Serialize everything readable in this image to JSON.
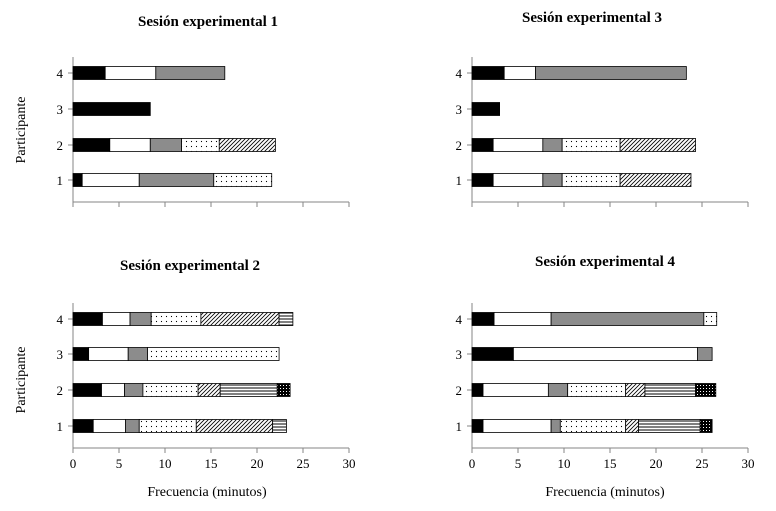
{
  "patterns": [
    "solid-black",
    "white",
    "gray",
    "dots",
    "diagonal-hatch",
    "horizontal-lines",
    "black-dots"
  ],
  "colors": {
    "black": "#000000",
    "gray": "#8c8c8c",
    "white": "#ffffff"
  },
  "chart_data": [
    {
      "type": "bar",
      "orientation": "horizontal-stacked",
      "title": "Sesión experimental 1",
      "ylabel": "Participante",
      "xlabel": "",
      "xlim": [
        0,
        30
      ],
      "x_ticks": [
        "0",
        "5",
        "10",
        "15",
        "20",
        "25",
        "30"
      ],
      "x_tick_labels_shown": false,
      "categories": [
        "1",
        "2",
        "3",
        "4"
      ],
      "bars": [
        {
          "participant": "1",
          "segments": [
            {
              "pattern": "solid-black",
              "value": 1.0
            },
            {
              "pattern": "white",
              "value": 6.2
            },
            {
              "pattern": "gray",
              "value": 8.1
            },
            {
              "pattern": "dots",
              "value": 6.3
            }
          ]
        },
        {
          "participant": "2",
          "segments": [
            {
              "pattern": "solid-black",
              "value": 4.0
            },
            {
              "pattern": "white",
              "value": 4.4
            },
            {
              "pattern": "gray",
              "value": 3.4
            },
            {
              "pattern": "dots",
              "value": 4.1
            },
            {
              "pattern": "diagonal-hatch",
              "value": 6.1
            }
          ]
        },
        {
          "participant": "3",
          "segments": [
            {
              "pattern": "solid-black",
              "value": 8.4
            }
          ]
        },
        {
          "participant": "4",
          "segments": [
            {
              "pattern": "solid-black",
              "value": 3.5
            },
            {
              "pattern": "white",
              "value": 5.5
            },
            {
              "pattern": "gray",
              "value": 7.5
            }
          ]
        }
      ]
    },
    {
      "type": "bar",
      "orientation": "horizontal-stacked",
      "title": "Sesión experimental 3",
      "ylabel": "",
      "xlabel": "",
      "xlim": [
        0,
        30
      ],
      "x_ticks": [
        "0",
        "5",
        "10",
        "15",
        "20",
        "25",
        "30"
      ],
      "x_tick_labels_shown": false,
      "categories": [
        "1",
        "2",
        "3",
        "4"
      ],
      "bars": [
        {
          "participant": "1",
          "segments": [
            {
              "pattern": "solid-black",
              "value": 2.3
            },
            {
              "pattern": "white",
              "value": 5.4
            },
            {
              "pattern": "gray",
              "value": 2.1
            },
            {
              "pattern": "dots",
              "value": 6.3
            },
            {
              "pattern": "diagonal-hatch",
              "value": 7.7
            }
          ]
        },
        {
          "participant": "2",
          "segments": [
            {
              "pattern": "solid-black",
              "value": 2.3
            },
            {
              "pattern": "white",
              "value": 5.4
            },
            {
              "pattern": "gray",
              "value": 2.1
            },
            {
              "pattern": "dots",
              "value": 6.3
            },
            {
              "pattern": "diagonal-hatch",
              "value": 8.2
            }
          ]
        },
        {
          "participant": "3",
          "segments": [
            {
              "pattern": "solid-black",
              "value": 3.0
            }
          ]
        },
        {
          "participant": "4",
          "segments": [
            {
              "pattern": "solid-black",
              "value": 3.5
            },
            {
              "pattern": "white",
              "value": 3.4
            },
            {
              "pattern": "gray",
              "value": 16.4
            }
          ]
        }
      ]
    },
    {
      "type": "bar",
      "orientation": "horizontal-stacked",
      "title": "Sesión experimental 2",
      "ylabel": "Participante",
      "xlabel": "Frecuencia (minutos)",
      "xlim": [
        0,
        30
      ],
      "x_ticks": [
        "0",
        "5",
        "10",
        "15",
        "20",
        "25",
        "30"
      ],
      "x_tick_labels_shown": true,
      "categories": [
        "1",
        "2",
        "3",
        "4"
      ],
      "bars": [
        {
          "participant": "1",
          "segments": [
            {
              "pattern": "solid-black",
              "value": 2.2
            },
            {
              "pattern": "white",
              "value": 3.5
            },
            {
              "pattern": "gray",
              "value": 1.5
            },
            {
              "pattern": "dots",
              "value": 6.2
            },
            {
              "pattern": "diagonal-hatch",
              "value": 8.3
            },
            {
              "pattern": "horizontal-lines",
              "value": 1.5
            }
          ]
        },
        {
          "participant": "2",
          "segments": [
            {
              "pattern": "solid-black",
              "value": 3.1
            },
            {
              "pattern": "white",
              "value": 2.5
            },
            {
              "pattern": "gray",
              "value": 2.0
            },
            {
              "pattern": "dots",
              "value": 6.0
            },
            {
              "pattern": "diagonal-hatch",
              "value": 2.4
            },
            {
              "pattern": "horizontal-lines",
              "value": 6.2
            },
            {
              "pattern": "black-dots",
              "value": 1.4
            }
          ]
        },
        {
          "participant": "3",
          "segments": [
            {
              "pattern": "solid-black",
              "value": 1.7
            },
            {
              "pattern": "white",
              "value": 4.3
            },
            {
              "pattern": "gray",
              "value": 2.1
            },
            {
              "pattern": "dots",
              "value": 14.3
            }
          ]
        },
        {
          "participant": "4",
          "segments": [
            {
              "pattern": "solid-black",
              "value": 3.2
            },
            {
              "pattern": "white",
              "value": 3.0
            },
            {
              "pattern": "gray",
              "value": 2.3
            },
            {
              "pattern": "dots",
              "value": 5.4
            },
            {
              "pattern": "diagonal-hatch",
              "value": 8.5
            },
            {
              "pattern": "horizontal-lines",
              "value": 1.5
            }
          ]
        }
      ]
    },
    {
      "type": "bar",
      "orientation": "horizontal-stacked",
      "title": "Sesión experimental 4",
      "ylabel": "",
      "xlabel": "Frecuencia (minutos)",
      "xlim": [
        0,
        30
      ],
      "x_ticks": [
        "0",
        "5",
        "10",
        "15",
        "20",
        "25",
        "30"
      ],
      "x_tick_labels_shown": true,
      "categories": [
        "1",
        "2",
        "3",
        "4"
      ],
      "bars": [
        {
          "participant": "1",
          "segments": [
            {
              "pattern": "solid-black",
              "value": 1.2
            },
            {
              "pattern": "white",
              "value": 7.4
            },
            {
              "pattern": "gray",
              "value": 1.0
            },
            {
              "pattern": "dots",
              "value": 7.1
            },
            {
              "pattern": "diagonal-hatch",
              "value": 1.4
            },
            {
              "pattern": "horizontal-lines",
              "value": 6.7
            },
            {
              "pattern": "black-dots",
              "value": 1.3
            }
          ]
        },
        {
          "participant": "2",
          "segments": [
            {
              "pattern": "solid-black",
              "value": 1.2
            },
            {
              "pattern": "white",
              "value": 7.1
            },
            {
              "pattern": "gray",
              "value": 2.1
            },
            {
              "pattern": "dots",
              "value": 6.3
            },
            {
              "pattern": "diagonal-hatch",
              "value": 2.1
            },
            {
              "pattern": "horizontal-lines",
              "value": 5.5
            },
            {
              "pattern": "black-dots",
              "value": 2.2
            }
          ]
        },
        {
          "participant": "3",
          "segments": [
            {
              "pattern": "solid-black",
              "value": 4.5
            },
            {
              "pattern": "white",
              "value": 20.0
            },
            {
              "pattern": "gray",
              "value": 1.6
            }
          ]
        },
        {
          "participant": "4",
          "segments": [
            {
              "pattern": "solid-black",
              "value": 2.4
            },
            {
              "pattern": "white",
              "value": 6.2
            },
            {
              "pattern": "gray",
              "value": 16.6
            },
            {
              "pattern": "dots",
              "value": 1.4
            }
          ]
        }
      ]
    }
  ]
}
